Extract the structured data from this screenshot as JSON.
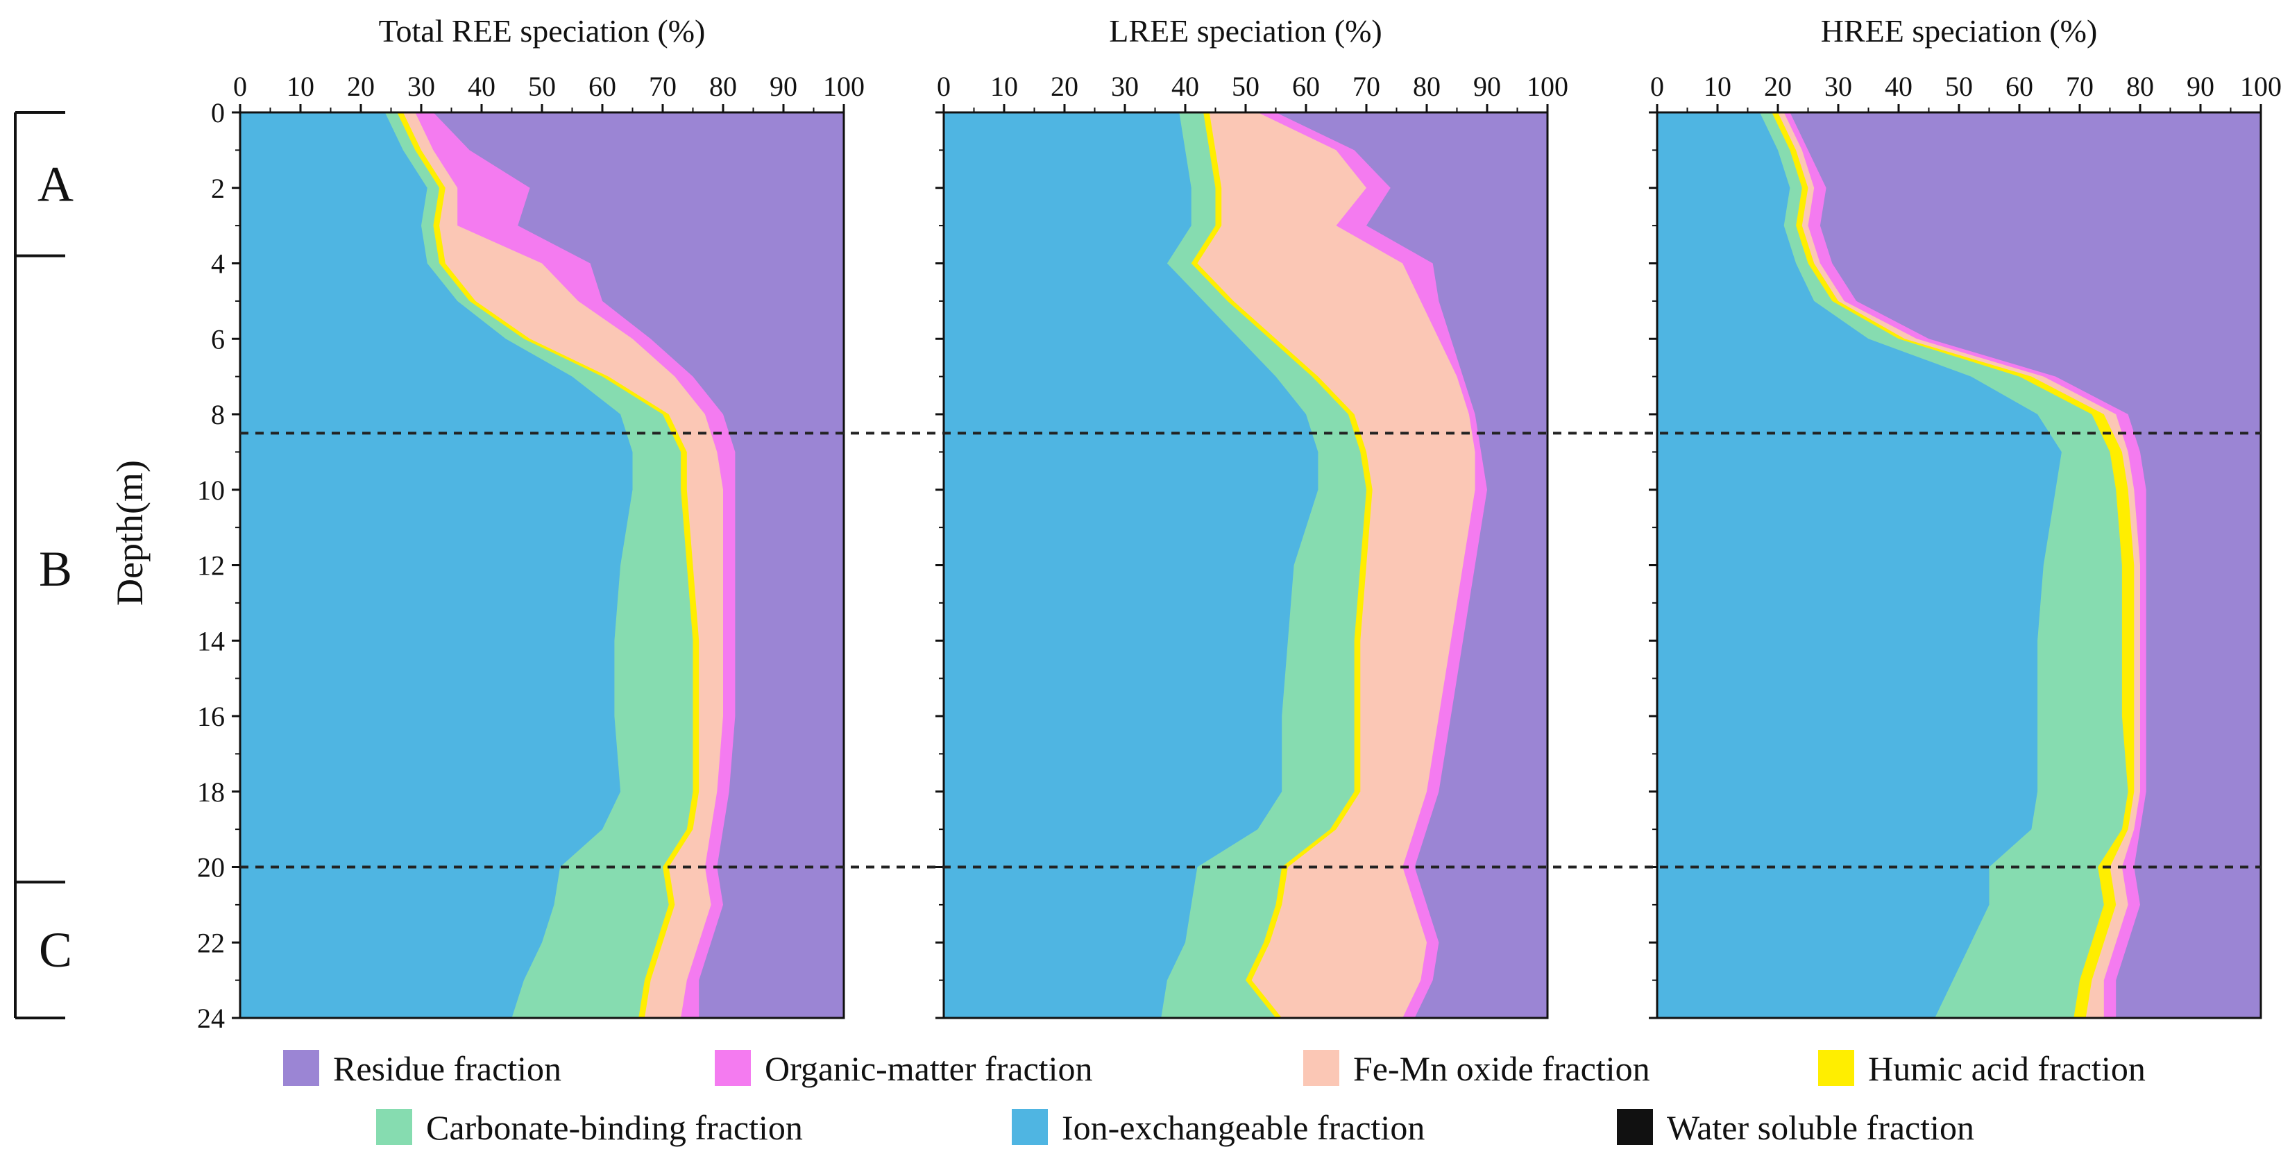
{
  "chart_data": {
    "type": "area",
    "ylabel": "Depth(m)",
    "y_ticks": [
      0,
      2,
      4,
      6,
      8,
      10,
      12,
      14,
      16,
      18,
      20,
      22,
      24
    ],
    "x_ticks": [
      0,
      10,
      20,
      30,
      40,
      50,
      60,
      70,
      80,
      90,
      100
    ],
    "xlim": [
      0,
      100
    ],
    "ylim": [
      0,
      24
    ],
    "zones": [
      {
        "label": "A",
        "from": 0,
        "to": 3.8
      },
      {
        "label": "B",
        "from": 3.8,
        "to": 20.4
      },
      {
        "label": "C",
        "from": 20.4,
        "to": 24
      }
    ],
    "boundaries": [
      8.5,
      20
    ],
    "legend": [
      {
        "key": "residue",
        "label": "Residue fraction",
        "color": "#9b85d4"
      },
      {
        "key": "organic",
        "label": "Organic-matter fraction",
        "color": "#f47bf0"
      },
      {
        "key": "femn",
        "label": "Fe-Mn oxide fraction",
        "color": "#fbc7b5"
      },
      {
        "key": "humic",
        "label": "Humic acid fraction",
        "color": "#ffee00"
      },
      {
        "key": "carbonate",
        "label": "Carbonate-binding fraction",
        "color": "#86dcb0"
      },
      {
        "key": "ion",
        "label": "Ion-exchangeable fraction",
        "color": "#4fb5e2"
      },
      {
        "key": "water",
        "label": "Water soluble fraction",
        "color": "#111111"
      }
    ],
    "series_order": [
      "water",
      "ion",
      "carbonate",
      "humic",
      "femn",
      "organic",
      "residue"
    ],
    "depth": [
      0,
      1,
      2,
      3,
      4,
      5,
      6,
      7,
      8,
      9,
      10,
      12,
      14,
      16,
      18,
      19,
      20,
      21,
      22,
      23,
      24
    ],
    "panels": [
      {
        "title": "Total REE speciation (%)",
        "cumulative": {
          "water": [
            0,
            0,
            0,
            0,
            0,
            0,
            0,
            0,
            0,
            0,
            0,
            0,
            0,
            0,
            0,
            0,
            0,
            0,
            0,
            0,
            0
          ],
          "ion": [
            24,
            27,
            31,
            30,
            31,
            36,
            44,
            55,
            63,
            65,
            65,
            63,
            62,
            62,
            63,
            60,
            53,
            52,
            50,
            47,
            45
          ],
          "carbonate": [
            26,
            29,
            33,
            32,
            33,
            38,
            47,
            60,
            70,
            73,
            73,
            74,
            75,
            75,
            75,
            74,
            70,
            71,
            69,
            67,
            66
          ],
          "humic": [
            27,
            30,
            34,
            33,
            34,
            39,
            48,
            61,
            71,
            74,
            74,
            75,
            76,
            76,
            76,
            75,
            71,
            72,
            70,
            68,
            67
          ],
          "femn": [
            29,
            32,
            36,
            36,
            50,
            56,
            65,
            72,
            77,
            79,
            80,
            80,
            80,
            80,
            79,
            78,
            77,
            78,
            76,
            74,
            73
          ],
          "organic": [
            32,
            38,
            48,
            46,
            58,
            60,
            68,
            75,
            80,
            82,
            82,
            82,
            82,
            82,
            81,
            80,
            79,
            80,
            78,
            76,
            76
          ],
          "residue": [
            100,
            100,
            100,
            100,
            100,
            100,
            100,
            100,
            100,
            100,
            100,
            100,
            100,
            100,
            100,
            100,
            100,
            100,
            100,
            100,
            100
          ]
        }
      },
      {
        "title": "LREE speciation (%)",
        "cumulative": {
          "water": [
            0,
            0,
            0,
            0,
            0,
            0,
            0,
            0,
            0,
            0,
            0,
            0,
            0,
            0,
            0,
            0,
            0,
            0,
            0,
            0,
            0
          ],
          "ion": [
            39,
            40,
            41,
            41,
            37,
            43,
            49,
            55,
            60,
            62,
            62,
            58,
            57,
            56,
            56,
            52,
            42,
            41,
            40,
            37,
            36
          ],
          "carbonate": [
            43,
            44,
            45,
            45,
            41,
            47,
            54,
            61,
            67,
            69,
            70,
            69,
            68,
            68,
            68,
            64,
            56,
            55,
            53,
            50,
            55
          ],
          "humic": [
            44,
            45,
            46,
            46,
            42,
            48,
            55,
            62,
            68,
            70,
            71,
            70,
            69,
            69,
            69,
            65,
            57,
            56,
            54,
            51,
            56
          ],
          "femn": [
            52,
            65,
            70,
            65,
            76,
            79,
            82,
            85,
            87,
            88,
            88,
            86,
            84,
            82,
            80,
            78,
            76,
            78,
            80,
            79,
            76
          ],
          "organic": [
            55,
            68,
            74,
            70,
            81,
            82,
            84,
            86,
            88,
            89,
            90,
            88,
            86,
            84,
            82,
            80,
            78,
            80,
            82,
            81,
            78
          ],
          "residue": [
            100,
            100,
            100,
            100,
            100,
            100,
            100,
            100,
            100,
            100,
            100,
            100,
            100,
            100,
            100,
            100,
            100,
            100,
            100,
            100,
            100
          ]
        }
      },
      {
        "title": "HREE speciation (%)",
        "cumulative": {
          "water": [
            0,
            0,
            0,
            0,
            0,
            0,
            0,
            0,
            0,
            0,
            0,
            0,
            0,
            0,
            0,
            0,
            0,
            0,
            0,
            0,
            0
          ],
          "ion": [
            17,
            20,
            22,
            21,
            23,
            26,
            35,
            52,
            63,
            67,
            66,
            64,
            63,
            63,
            63,
            62,
            55,
            55,
            52,
            49,
            46
          ],
          "carbonate": [
            19,
            22,
            24,
            23,
            25,
            29,
            40,
            60,
            72,
            75,
            76,
            77,
            77,
            77,
            78,
            77,
            73,
            74,
            72,
            70,
            69
          ],
          "humic": [
            20,
            23,
            25,
            24,
            26,
            30,
            41,
            62,
            74,
            77,
            78,
            79,
            79,
            79,
            79,
            78,
            75,
            76,
            74,
            72,
            71
          ],
          "femn": [
            21,
            24,
            26,
            25,
            27,
            31,
            43,
            64,
            76,
            78,
            79,
            80,
            80,
            80,
            80,
            79,
            77,
            78,
            76,
            74,
            74
          ],
          "organic": [
            22,
            25,
            28,
            27,
            29,
            33,
            45,
            66,
            78,
            80,
            81,
            81,
            81,
            81,
            81,
            80,
            79,
            80,
            78,
            76,
            76
          ],
          "residue": [
            100,
            100,
            100,
            100,
            100,
            100,
            100,
            100,
            100,
            100,
            100,
            100,
            100,
            100,
            100,
            100,
            100,
            100,
            100,
            100,
            100
          ]
        }
      }
    ]
  }
}
